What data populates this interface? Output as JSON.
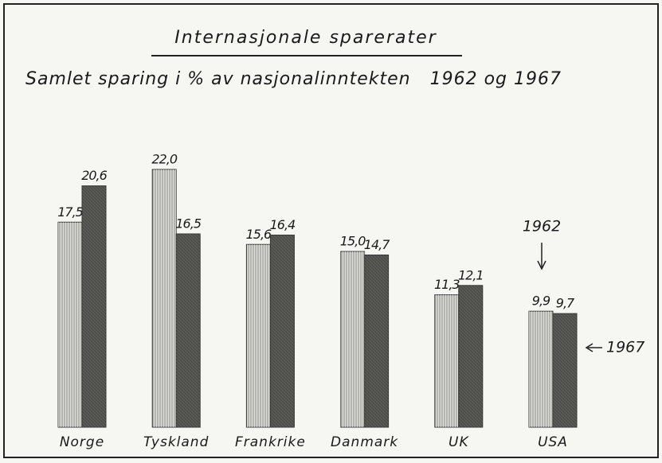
{
  "chart_data": {
    "type": "bar",
    "title": "Internasjonale sparerater",
    "subtitle": "Samlet sparing i % av nasjonalinntekten   1962 og 1967",
    "categories": [
      "Norge",
      "Tyskland",
      "Frankrike",
      "Danmark",
      "UK",
      "USA"
    ],
    "series": [
      {
        "name": "1962",
        "color": "#b5b5b0",
        "values": [
          17.5,
          22.0,
          15.6,
          15.0,
          11.3,
          9.9
        ],
        "value_labels": [
          "17,5",
          "22,0",
          "15,6",
          "15,0",
          "11,3",
          "9,9"
        ]
      },
      {
        "name": "1967",
        "color": "#4d4d4a",
        "values": [
          20.6,
          16.5,
          16.4,
          14.7,
          12.1,
          9.7
        ],
        "value_labels": [
          "20,6",
          "16,5",
          "16,4",
          "14,7",
          "12,1",
          "9,7"
        ]
      }
    ]
  }
}
